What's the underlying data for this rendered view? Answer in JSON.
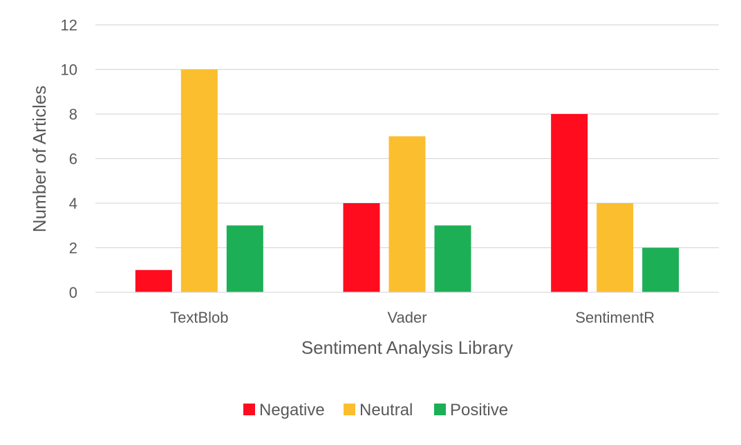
{
  "chart_data": {
    "type": "bar",
    "title": "",
    "xlabel": "Sentiment Analysis Library",
    "ylabel": "Number of Articles",
    "categories": [
      "TextBlob",
      "Vader",
      "SentimentR"
    ],
    "series": [
      {
        "name": "Negative",
        "color": "#ff0c1f",
        "values": [
          1,
          4,
          8
        ]
      },
      {
        "name": "Neutral",
        "color": "#fbbe2f",
        "values": [
          10,
          7,
          4
        ]
      },
      {
        "name": "Positive",
        "color": "#1daf55",
        "values": [
          3,
          3,
          2
        ]
      }
    ],
    "ylim": [
      0,
      12
    ],
    "yticks": [
      0,
      2,
      4,
      6,
      8,
      10,
      12
    ],
    "grid": true,
    "legend_position": "bottom"
  }
}
